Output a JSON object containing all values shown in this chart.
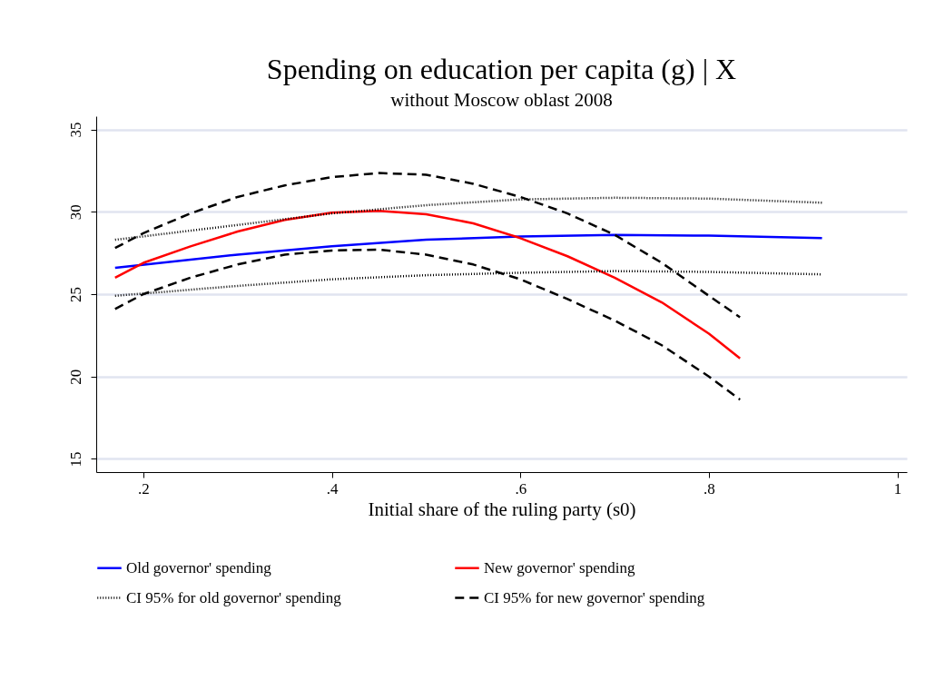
{
  "chart_data": {
    "type": "line",
    "title": "Spending on education per capita (g) | X",
    "subtitle": "without Moscow oblast 2008",
    "xlabel": "Initial share of the ruling party (s0)",
    "xlim": [
      0.15,
      1.01
    ],
    "xticks": [
      {
        "value": 0.2,
        "label": ".2"
      },
      {
        "value": 0.4,
        "label": ".4"
      },
      {
        "value": 0.6,
        "label": ".6"
      },
      {
        "value": 0.8,
        "label": ".8"
      },
      1
    ],
    "ylim": [
      14.2,
      35.8
    ],
    "yticks": [
      15,
      20,
      25,
      30,
      35
    ],
    "grid": "y",
    "legend": "bottom",
    "marker": "none",
    "series": [
      {
        "name": "Old governor' spending",
        "color": "#0000ff",
        "line_style": "solid",
        "x": [
          0.17,
          0.3,
          0.4,
          0.5,
          0.6,
          0.7,
          0.8,
          0.92
        ],
        "values": [
          26.6,
          27.4,
          27.9,
          28.3,
          28.5,
          28.6,
          28.55,
          28.4
        ]
      },
      {
        "name": "New governor' spending",
        "color": "#ff0000",
        "line_style": "solid",
        "x": [
          0.17,
          0.2,
          0.25,
          0.3,
          0.35,
          0.4,
          0.45,
          0.5,
          0.55,
          0.6,
          0.65,
          0.7,
          0.75,
          0.8,
          0.833
        ],
        "values": [
          26.0,
          26.9,
          27.9,
          28.8,
          29.5,
          29.95,
          30.05,
          29.85,
          29.3,
          28.4,
          27.3,
          26.0,
          24.5,
          22.6,
          21.1
        ]
      },
      {
        "name": "CI 95% for old governor' spending",
        "color": "#000000",
        "line_style": "dotted",
        "x": [
          0.17,
          0.3,
          0.4,
          0.5,
          0.6,
          0.7,
          0.8,
          0.92
        ],
        "values": [
          28.3,
          29.2,
          29.9,
          30.4,
          30.75,
          30.85,
          30.8,
          30.55
        ]
      },
      {
        "name": "CI 95% for new governor' spending",
        "color": "#000000",
        "line_style": "dashed",
        "x": [
          0.17,
          0.2,
          0.25,
          0.3,
          0.35,
          0.4,
          0.45,
          0.5,
          0.55,
          0.6,
          0.65,
          0.7,
          0.75,
          0.8,
          0.833
        ],
        "values": [
          27.8,
          28.7,
          29.9,
          30.9,
          31.6,
          32.1,
          32.35,
          32.25,
          31.7,
          30.9,
          29.9,
          28.6,
          26.9,
          24.9,
          23.6
        ]
      },
      {
        "color": "#000000",
        "line_style": "dotted",
        "x": [
          0.17,
          0.3,
          0.4,
          0.5,
          0.6,
          0.7,
          0.8,
          0.92
        ],
        "values": [
          24.9,
          25.5,
          25.9,
          26.15,
          26.3,
          26.4,
          26.35,
          26.2
        ]
      },
      {
        "color": "#000000",
        "line_style": "dashed",
        "x": [
          0.17,
          0.2,
          0.25,
          0.3,
          0.35,
          0.4,
          0.45,
          0.5,
          0.55,
          0.6,
          0.65,
          0.7,
          0.75,
          0.8,
          0.833
        ],
        "values": [
          24.1,
          25.0,
          26.0,
          26.8,
          27.4,
          27.65,
          27.7,
          27.4,
          26.8,
          25.9,
          24.7,
          23.4,
          21.9,
          20.0,
          18.6
        ]
      }
    ]
  }
}
